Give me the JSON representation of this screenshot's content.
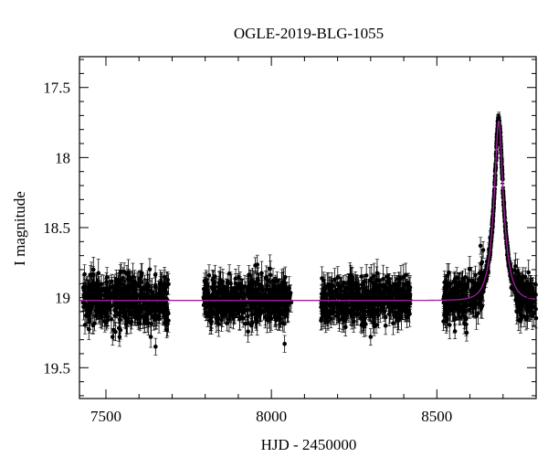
{
  "chart_data": {
    "type": "scatter",
    "title": "OGLE-2019-BLG-1055",
    "xlabel": "HJD - 2450000",
    "ylabel": "I magnitude",
    "xlim": [
      7420,
      8800
    ],
    "ylim": [
      19.72,
      17.28
    ],
    "y_inverted": true,
    "xticks": [
      7500,
      8000,
      8500
    ],
    "yticks": [
      17.5,
      18,
      18.5,
      19,
      19.5
    ],
    "xtick_labels": [
      "7500",
      "8000",
      "8500"
    ],
    "ytick_labels": [
      "17.5",
      "18",
      "18.5",
      "19",
      "19.5"
    ],
    "grid": false,
    "legend": "none",
    "colors": {
      "points": "#000000",
      "model": "#a020a0"
    },
    "seasons": [
      {
        "x_range": [
          7430,
          7690
        ],
        "baseline_mag": 19.01,
        "scatter_mag": 0.09
      },
      {
        "x_range": [
          7795,
          8060
        ],
        "baseline_mag": 19.01,
        "scatter_mag": 0.08
      },
      {
        "x_range": [
          8150,
          8420
        ],
        "baseline_mag": 19.01,
        "scatter_mag": 0.08
      },
      {
        "x_range": [
          8520,
          8800
        ],
        "baseline_mag": 19.01,
        "scatter_mag": 0.08
      }
    ],
    "model": {
      "baseline_mag": 19.02,
      "peak_x": 8687,
      "peak_mag": 17.74,
      "description": "single-lens microlensing light curve"
    },
    "outliers": [
      {
        "x": 8632,
        "y": 18.63
      },
      {
        "x": 8640,
        "y": 18.66
      },
      {
        "x": 8725,
        "y": 18.93
      },
      {
        "x": 8742,
        "y": 19.1
      },
      {
        "x": 8755,
        "y": 19.15
      },
      {
        "x": 7520,
        "y": 19.28
      },
      {
        "x": 7650,
        "y": 19.35
      },
      {
        "x": 8040,
        "y": 19.33
      },
      {
        "x": 8300,
        "y": 19.28
      },
      {
        "x": 8590,
        "y": 19.25
      }
    ]
  }
}
